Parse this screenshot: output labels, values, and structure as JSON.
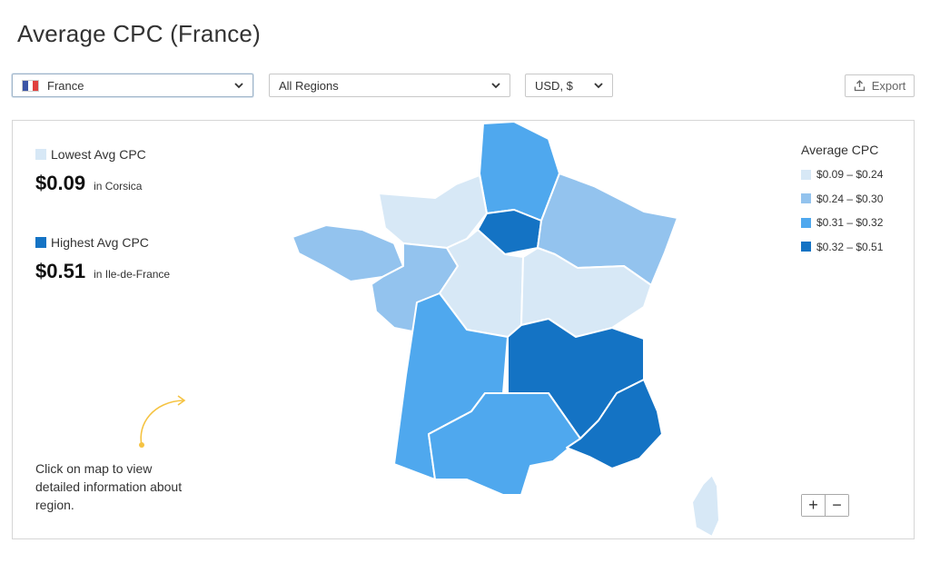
{
  "page_title": "Average CPC (France)",
  "filters": {
    "country": {
      "value": "France",
      "flag_colors": [
        "#3b55a6",
        "#ffffff",
        "#e0403e"
      ]
    },
    "region": {
      "value": "All Regions"
    },
    "currency": {
      "value": "USD, $"
    }
  },
  "export": {
    "label": "Export",
    "icon": "upload-icon"
  },
  "stats": {
    "lowest": {
      "title": "Lowest Avg CPC",
      "value": "$0.09",
      "location": "in Corsica",
      "color": "#d7e8f6"
    },
    "highest": {
      "title": "Highest Avg CPC",
      "value": "$0.51",
      "location": "in Ile-de-France",
      "color": "#1473c4"
    }
  },
  "hint": "Click on map to view detailed information about region.",
  "legend": {
    "title": "Average CPC",
    "items": [
      {
        "label": "$0.09 – $0.24",
        "color": "#d7e8f6"
      },
      {
        "label": "$0.24 – $0.30",
        "color": "#93c3ee"
      },
      {
        "label": "$0.31 – $0.32",
        "color": "#4fa8ee"
      },
      {
        "label": "$0.32 – $0.51",
        "color": "#1473c4"
      }
    ]
  },
  "zoom": {
    "in": "+",
    "out": "−"
  },
  "accent_color": "#f5c342"
}
